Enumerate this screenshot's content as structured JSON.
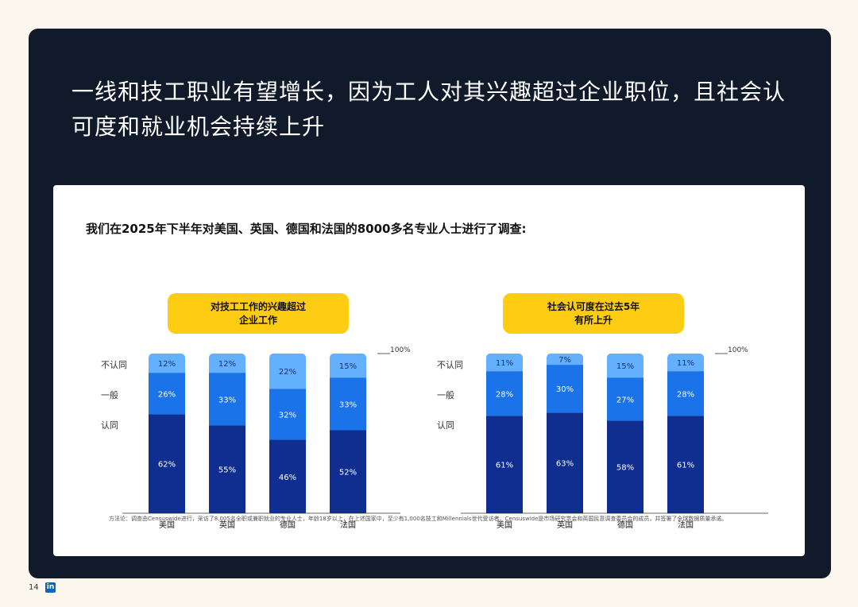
{
  "headline": "一线和技工职业有望增长，因为工人对其兴趣超过企业职位，且社会认可度和就业机会持续上升",
  "subtitle": "我们在2025年下半年对美国、英国、德国和法国的8000多名专业人士进行了调查:",
  "footnote": "方法论：调查由Censuswide进行，采访了8,005名全职或兼职就业的专业人士，年龄18岁以上，在上述国家中，至少有1,000名技工和Millennials世代受访者。Censuswide是市场研究学会和英国民意调查委员会的成员，并签署了全球数据质量承诺。",
  "page_number": "14",
  "logo_text": "in",
  "colors": {
    "panel": "#101a2b",
    "agree": "#0f2e8f",
    "neutral": "#1a73e8",
    "disagree": "#63b0ff",
    "badge": "#ffcc14",
    "axis": "#999999"
  },
  "chart_data": [
    {
      "type": "bar",
      "stacked": true,
      "title": "对技工工作的兴趣超过企业工作",
      "title_lines": [
        "对技工工作的兴趣超过",
        "企业工作"
      ],
      "categories": [
        "美国",
        "英国",
        "德国",
        "法国"
      ],
      "series": [
        {
          "name": "认同",
          "values": [
            62,
            55,
            46,
            52
          ],
          "labels": [
            "62%",
            "55%",
            "46%",
            "52%"
          ]
        },
        {
          "name": "一般",
          "values": [
            26,
            33,
            32,
            33
          ],
          "labels": [
            "26%",
            "33%",
            "32%",
            "33%"
          ]
        },
        {
          "name": "不认同",
          "values": [
            12,
            12,
            22,
            15
          ],
          "labels": [
            "12%",
            "12%",
            "22%",
            "15%"
          ]
        }
      ],
      "ymax_label": "100%",
      "ylim": [
        0,
        100
      ]
    },
    {
      "type": "bar",
      "stacked": true,
      "title": "社会认可度在过去5年有所上升",
      "title_lines": [
        "社会认可度在过去5年",
        "有所上升"
      ],
      "categories": [
        "美国",
        "英国",
        "德国",
        "法国"
      ],
      "series": [
        {
          "name": "认同",
          "values": [
            61,
            63,
            58,
            61
          ],
          "labels": [
            "61%",
            "63%",
            "58%",
            "61%"
          ]
        },
        {
          "name": "一般",
          "values": [
            28,
            30,
            27,
            28
          ],
          "labels": [
            "28%",
            "30%",
            "27%",
            "28%"
          ]
        },
        {
          "name": "不认同",
          "values": [
            11,
            7,
            15,
            11
          ],
          "labels": [
            "11%",
            "7%",
            "15%",
            "11%"
          ]
        }
      ],
      "ymax_label": "100%",
      "ylim": [
        0,
        100
      ]
    }
  ]
}
